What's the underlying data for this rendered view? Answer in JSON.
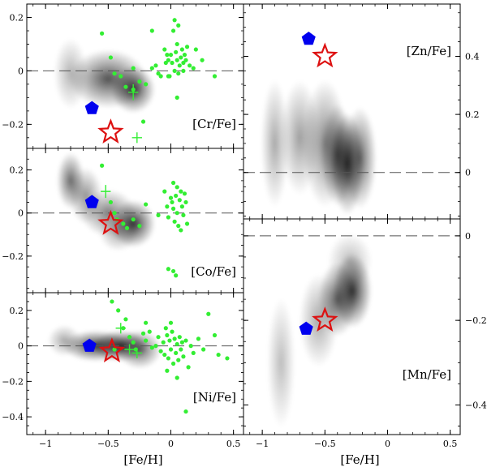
{
  "chart_data": [
    {
      "id": "cr",
      "type": "scatter",
      "label": "[Cr/Fe]",
      "xlabel": "",
      "xlim": [
        -1.15,
        0.58
      ],
      "ylim": [
        -0.29,
        0.25
      ],
      "xticks": [
        -1,
        -0.5,
        0,
        0.5
      ],
      "yticks": [
        -0.2,
        0,
        0.2
      ],
      "yticks_labeled": [
        -0.2,
        0,
        0.2
      ],
      "ytick_labels": [
        "−0.2",
        "0",
        "0.2"
      ],
      "reference_line_y": 0,
      "density_blobs": [
        {
          "x": -0.8,
          "y": -0.01,
          "sx": 0.06,
          "sy": 0.06,
          "w": 0.35
        },
        {
          "x": -0.5,
          "y": -0.03,
          "sx": 0.14,
          "sy": 0.05,
          "w": 0.8
        },
        {
          "x": -0.3,
          "y": -0.07,
          "sx": 0.08,
          "sy": 0.04,
          "w": 0.9
        }
      ],
      "points": [
        [
          -0.55,
          0.14
        ],
        [
          -0.48,
          0.05
        ],
        [
          -0.45,
          -0.01
        ],
        [
          -0.4,
          -0.02
        ],
        [
          -0.36,
          -0.06
        ],
        [
          -0.3,
          -0.07
        ],
        [
          -0.3,
          0.01
        ],
        [
          -0.25,
          -0.04
        ],
        [
          -0.2,
          -0.05
        ],
        [
          -0.15,
          0.15
        ],
        [
          -0.15,
          0.01
        ],
        [
          -0.12,
          0.02
        ],
        [
          -0.1,
          -0.01
        ],
        [
          -0.08,
          -0.02
        ],
        [
          -0.05,
          0.08
        ],
        [
          -0.04,
          0.03
        ],
        [
          -0.03,
          0.06
        ],
        [
          -0.02,
          0.04
        ],
        [
          -0.01,
          -0.02
        ],
        [
          0.0,
          0.06
        ],
        [
          0.01,
          0.03
        ],
        [
          0.02,
          0.15
        ],
        [
          0.03,
          0.19
        ],
        [
          0.03,
          0.0
        ],
        [
          0.04,
          0.07
        ],
        [
          0.05,
          0.1
        ],
        [
          0.05,
          0.04
        ],
        [
          0.06,
          0.17
        ],
        [
          0.06,
          -0.01
        ],
        [
          0.07,
          0.02
        ],
        [
          0.08,
          0.05
        ],
        [
          0.09,
          0.08
        ],
        [
          0.1,
          0.03
        ],
        [
          0.1,
          0.0
        ],
        [
          0.11,
          0.06
        ],
        [
          0.12,
          0.04
        ],
        [
          0.13,
          0.09
        ],
        [
          0.15,
          0.02
        ],
        [
          0.18,
          0.01
        ],
        [
          0.25,
          0.04
        ],
        [
          0.35,
          -0.02
        ],
        [
          0.2,
          0.08
        ],
        [
          0.05,
          -0.1
        ],
        [
          -0.22,
          -0.19
        ],
        [
          -0.02,
          -0.02
        ]
      ],
      "points_with_error": [
        {
          "x": -0.3,
          "y": -0.08,
          "ex": 0.04,
          "ey": 0.03
        },
        {
          "x": -0.27,
          "y": -0.25,
          "ex": 0.04,
          "ey": 0.02
        }
      ],
      "pentagon": {
        "x": -0.63,
        "y": -0.14
      },
      "star": {
        "x": -0.48,
        "y": -0.23
      }
    },
    {
      "id": "co",
      "type": "scatter",
      "label": "[Co/Fe]",
      "xlabel": "",
      "xlim": [
        -1.15,
        0.58
      ],
      "ylim": [
        -0.37,
        0.3
      ],
      "xticks": [
        -1,
        -0.5,
        0,
        0.5
      ],
      "yticks": [
        -0.2,
        0,
        0.2
      ],
      "yticks_labeled": [
        -0.2,
        0,
        0.2
      ],
      "ytick_labels": [
        "−0.2",
        "0",
        "0.2"
      ],
      "reference_line_y": 0,
      "density_blobs": [
        {
          "x": -0.8,
          "y": 0.15,
          "sx": 0.05,
          "sy": 0.06,
          "w": 0.7
        },
        {
          "x": -0.68,
          "y": 0.08,
          "sx": 0.06,
          "sy": 0.06,
          "w": 0.5
        },
        {
          "x": -0.5,
          "y": 0.0,
          "sx": 0.1,
          "sy": 0.05,
          "w": 0.6
        },
        {
          "x": -0.3,
          "y": -0.05,
          "sx": 0.08,
          "sy": 0.05,
          "w": 0.95
        },
        {
          "x": -0.42,
          "y": -0.09,
          "sx": 0.07,
          "sy": 0.04,
          "w": 0.4
        }
      ],
      "points": [
        [
          -0.55,
          0.22
        ],
        [
          -0.48,
          0.05
        ],
        [
          -0.45,
          0.0
        ],
        [
          -0.43,
          -0.03
        ],
        [
          -0.38,
          -0.05
        ],
        [
          -0.35,
          -0.07
        ],
        [
          -0.3,
          -0.03
        ],
        [
          -0.25,
          -0.06
        ],
        [
          -0.2,
          0.04
        ],
        [
          -0.05,
          0.1
        ],
        [
          -0.03,
          0.03
        ],
        [
          -0.02,
          -0.02
        ],
        [
          0.0,
          0.07
        ],
        [
          0.01,
          0.05
        ],
        [
          0.02,
          0.14
        ],
        [
          0.02,
          0.02
        ],
        [
          0.03,
          -0.04
        ],
        [
          0.04,
          0.08
        ],
        [
          0.05,
          0.12
        ],
        [
          0.05,
          0.0
        ],
        [
          0.06,
          -0.06
        ],
        [
          0.07,
          0.06
        ],
        [
          0.08,
          0.1
        ],
        [
          0.08,
          -0.08
        ],
        [
          0.09,
          0.03
        ],
        [
          0.1,
          -0.01
        ],
        [
          0.11,
          0.09
        ],
        [
          0.12,
          0.05
        ],
        [
          0.13,
          -0.05
        ],
        [
          -0.02,
          -0.26
        ],
        [
          0.02,
          -0.27
        ],
        [
          0.04,
          -0.29
        ],
        [
          -0.1,
          -0.01
        ]
      ],
      "points_with_error": [
        {
          "x": -0.52,
          "y": 0.1,
          "ex": 0.04,
          "ey": 0.03
        }
      ],
      "pentagon": {
        "x": -0.63,
        "y": 0.05
      },
      "star": {
        "x": -0.48,
        "y": -0.05
      }
    },
    {
      "id": "ni",
      "type": "scatter",
      "label": "[Ni/Fe]",
      "xlabel": "[Fe/H]",
      "xlim": [
        -1.15,
        0.58
      ],
      "ylim": [
        -0.5,
        0.3
      ],
      "xticks": [
        -1,
        -0.5,
        0,
        0.5
      ],
      "yticks": [
        -0.4,
        -0.2,
        0,
        0.2
      ],
      "yticks_labeled": [
        -0.4,
        -0.2,
        0,
        0.2
      ],
      "ytick_labels": [
        "−0.4",
        "−0.2",
        "0",
        "0.2"
      ],
      "xtick_labels": [
        "−1",
        "−0.5",
        "0",
        "0.5"
      ],
      "reference_line_y": 0,
      "density_blobs": [
        {
          "x": -0.85,
          "y": 0.03,
          "sx": 0.06,
          "sy": 0.04,
          "w": 0.4
        },
        {
          "x": -0.6,
          "y": 0.0,
          "sx": 0.12,
          "sy": 0.04,
          "w": 0.9
        },
        {
          "x": -0.4,
          "y": 0.0,
          "sx": 0.1,
          "sy": 0.04,
          "w": 0.95
        },
        {
          "x": -0.25,
          "y": -0.02,
          "sx": 0.08,
          "sy": 0.05,
          "w": 0.7
        }
      ],
      "points": [
        [
          -0.47,
          0.25
        ],
        [
          -0.42,
          0.2
        ],
        [
          -0.38,
          0.1
        ],
        [
          -0.36,
          0.15
        ],
        [
          -0.33,
          0.05
        ],
        [
          -0.3,
          0.02
        ],
        [
          -0.28,
          -0.02
        ],
        [
          -0.22,
          0.07
        ],
        [
          -0.2,
          0.03
        ],
        [
          -0.17,
          0.08
        ],
        [
          -0.15,
          -0.01
        ],
        [
          -0.12,
          0.0
        ],
        [
          -0.1,
          0.05
        ],
        [
          -0.08,
          -0.03
        ],
        [
          -0.06,
          0.02
        ],
        [
          -0.05,
          -0.05
        ],
        [
          -0.04,
          0.1
        ],
        [
          -0.03,
          0.06
        ],
        [
          -0.02,
          -0.07
        ],
        [
          -0.01,
          0.03
        ],
        [
          0.0,
          -0.02
        ],
        [
          0.01,
          0.08
        ],
        [
          0.02,
          -0.1
        ],
        [
          0.03,
          0.04
        ],
        [
          0.04,
          -0.04
        ],
        [
          0.05,
          0.01
        ],
        [
          0.06,
          -0.08
        ],
        [
          0.07,
          0.05
        ],
        [
          0.08,
          -0.02
        ],
        [
          0.09,
          0.02
        ],
        [
          0.1,
          -0.06
        ],
        [
          0.12,
          0.03
        ],
        [
          0.14,
          -0.12
        ],
        [
          0.16,
          0.0
        ],
        [
          0.18,
          -0.04
        ],
        [
          0.22,
          0.04
        ],
        [
          0.26,
          -0.02
        ],
        [
          0.3,
          0.18
        ],
        [
          0.35,
          0.06
        ],
        [
          0.38,
          -0.05
        ],
        [
          0.45,
          -0.07
        ],
        [
          -0.03,
          -0.14
        ],
        [
          0.05,
          -0.18
        ],
        [
          0.12,
          -0.37
        ],
        [
          -0.2,
          0.13
        ],
        [
          0.0,
          0.13
        ],
        [
          -0.45,
          -0.02
        ]
      ],
      "points_with_error": [
        {
          "x": -0.4,
          "y": 0.1,
          "ex": 0.04,
          "ey": 0.03
        },
        {
          "x": -0.33,
          "y": -0.02,
          "ex": 0.04,
          "ey": 0.03
        },
        {
          "x": -0.27,
          "y": -0.04,
          "ex": 0.04,
          "ey": 0.03
        }
      ],
      "pentagon": {
        "x": -0.65,
        "y": 0.0
      },
      "star": {
        "x": -0.47,
        "y": -0.03
      }
    },
    {
      "id": "zn",
      "type": "scatter",
      "label": "[Zn/Fe]",
      "xlabel": "",
      "xlim": [
        -1.15,
        0.58
      ],
      "ylim": [
        -0.16,
        0.58
      ],
      "xticks": [
        -1,
        -0.5,
        0,
        0.5
      ],
      "yticks": [
        0,
        0.2,
        0.4
      ],
      "yticks_labeled": [
        0,
        0.2,
        0.4
      ],
      "ytick_labels": [
        "0",
        "0.2",
        "0.4"
      ],
      "reference_line_y": 0,
      "density_blobs": [
        {
          "x": -0.9,
          "y": 0.1,
          "sx": 0.05,
          "sy": 0.1,
          "w": 0.4
        },
        {
          "x": -0.7,
          "y": 0.12,
          "sx": 0.07,
          "sy": 0.09,
          "w": 0.45
        },
        {
          "x": -0.5,
          "y": 0.1,
          "sx": 0.08,
          "sy": 0.1,
          "w": 0.55
        },
        {
          "x": -0.4,
          "y": 0.06,
          "sx": 0.06,
          "sy": 0.08,
          "w": 0.75
        },
        {
          "x": -0.32,
          "y": 0.03,
          "sx": 0.06,
          "sy": 0.08,
          "w": 0.95
        },
        {
          "x": -0.22,
          "y": 0.05,
          "sx": 0.06,
          "sy": 0.08,
          "w": 0.7
        }
      ],
      "points": [],
      "points_with_error": [],
      "pentagon": {
        "x": -0.63,
        "y": 0.46
      },
      "star": {
        "x": -0.5,
        "y": 0.4
      }
    },
    {
      "id": "mn",
      "type": "scatter",
      "label": "[Mn/Fe]",
      "xlabel": "[Fe/H]",
      "xlim": [
        -1.15,
        0.58
      ],
      "ylim": [
        -0.47,
        0.04
      ],
      "xticks": [
        -1,
        -0.5,
        0,
        0.5
      ],
      "yticks": [
        -0.4,
        -0.2,
        0
      ],
      "yticks_labeled": [
        -0.4,
        -0.2,
        0
      ],
      "ytick_labels": [
        "−0.4",
        "−0.2",
        "0"
      ],
      "xtick_labels": [
        "−1",
        "−0.5",
        "0",
        "0.5"
      ],
      "reference_line_y": 0,
      "density_blobs": [
        {
          "x": -0.85,
          "y": -0.3,
          "sx": 0.05,
          "sy": 0.07,
          "w": 0.3
        },
        {
          "x": -0.55,
          "y": -0.2,
          "sx": 0.07,
          "sy": 0.05,
          "w": 0.4
        },
        {
          "x": -0.4,
          "y": -0.15,
          "sx": 0.07,
          "sy": 0.04,
          "w": 0.75
        },
        {
          "x": -0.28,
          "y": -0.13,
          "sx": 0.07,
          "sy": 0.04,
          "w": 0.95
        },
        {
          "x": -0.3,
          "y": -0.06,
          "sx": 0.08,
          "sy": 0.03,
          "w": 0.3
        }
      ],
      "points": [],
      "points_with_error": [],
      "pentagon": {
        "x": -0.65,
        "y": -0.22
      },
      "star": {
        "x": -0.5,
        "y": -0.2
      }
    }
  ],
  "colors": {
    "points": "#33ee33",
    "pentagon": "#0000ee",
    "star": "#dd1111",
    "reference_line": "#555555",
    "frame": "#000000"
  }
}
